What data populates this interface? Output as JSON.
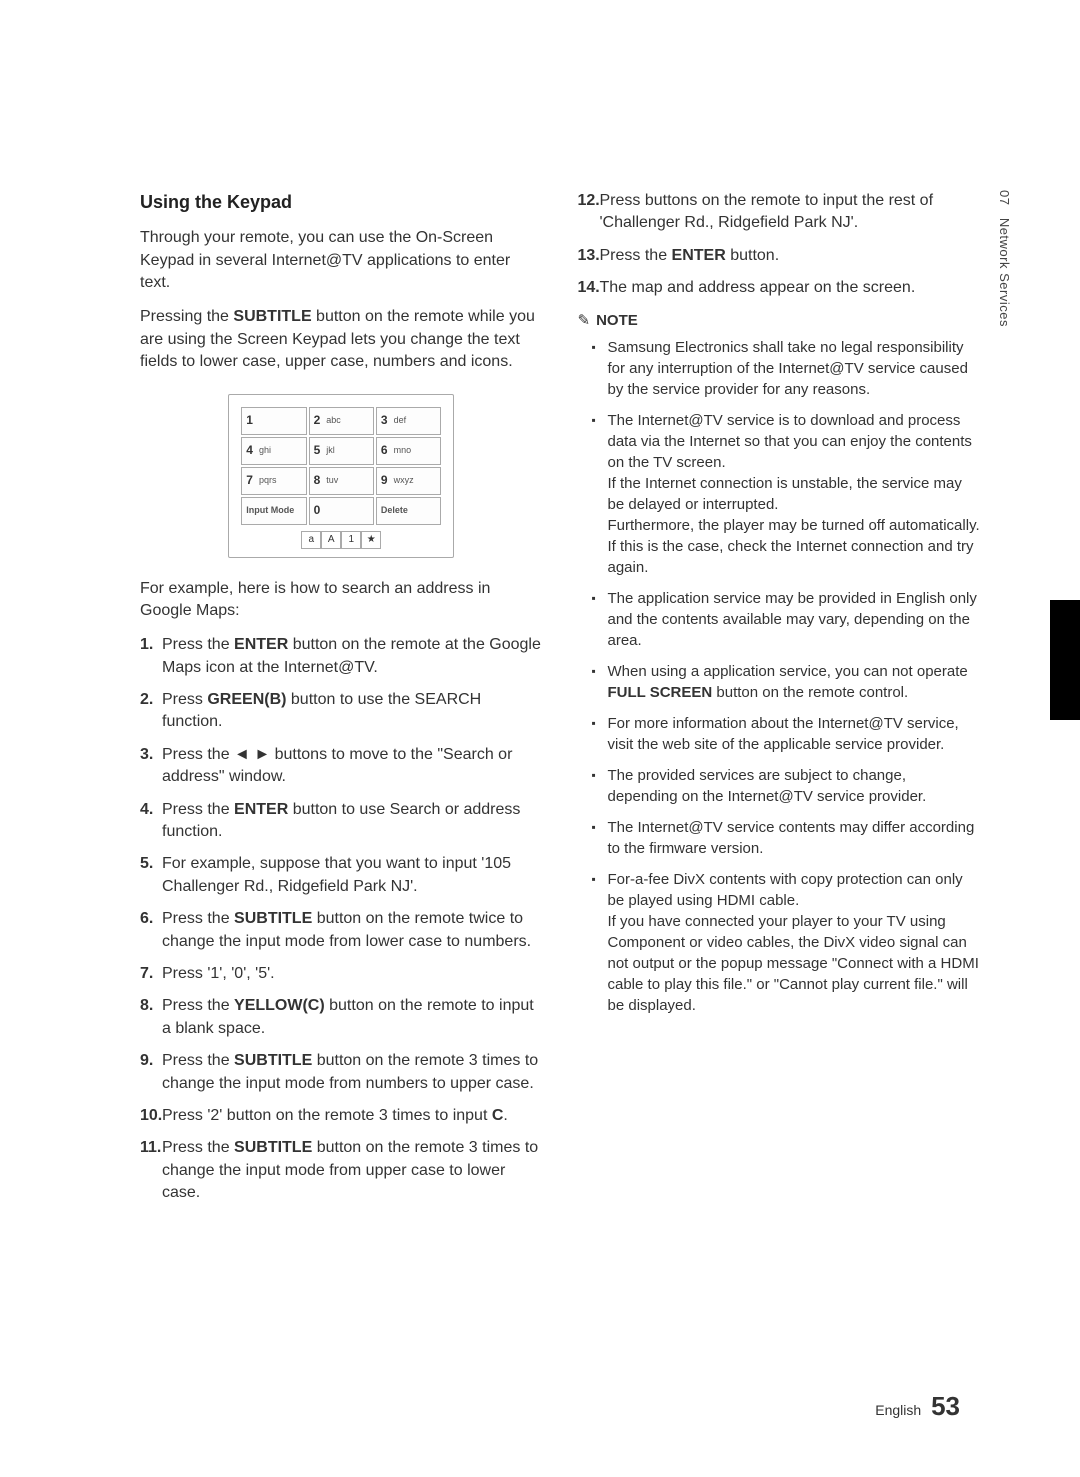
{
  "sideTab": {
    "chapter": "07",
    "title": "Network Services"
  },
  "footer": {
    "lang": "English",
    "page": "53"
  },
  "left": {
    "heading": "Using the Keypad",
    "intro1": "Through your remote, you can use the On-Screen Keypad in several Internet@TV applications to enter text.",
    "intro2_a": "Pressing the ",
    "intro2_b": "SUBTITLE",
    "intro2_c": " button on the remote while you are using the Screen Keypad lets you change the text fields to lower case, upper case, numbers and icons.",
    "keypad": {
      "keys": [
        {
          "n": "1",
          "l": ""
        },
        {
          "n": "2",
          "l": "abc"
        },
        {
          "n": "3",
          "l": "def"
        },
        {
          "n": "4",
          "l": "ghi"
        },
        {
          "n": "5",
          "l": "jkl"
        },
        {
          "n": "6",
          "l": "mno"
        },
        {
          "n": "7",
          "l": "pqrs"
        },
        {
          "n": "8",
          "l": "tuv"
        },
        {
          "n": "9",
          "l": "wxyz"
        }
      ],
      "inputMode": "Input Mode",
      "zero": "0",
      "delete": "Delete",
      "modes": [
        "a",
        "A",
        "1",
        "★"
      ]
    },
    "example_intro": "For example, here is how to search an address in Google Maps:",
    "steps": [
      {
        "pre": "Press the ",
        "b": "ENTER",
        "post": " button on the remote at the Google Maps icon at the Internet@TV."
      },
      {
        "pre": "Press ",
        "b": "GREEN(B)",
        "post": " button to use the SEARCH function."
      },
      {
        "pre": "Press the ◄ ► buttons to move to the \"Search or address\" window.",
        "b": "",
        "post": ""
      },
      {
        "pre": "Press the ",
        "b": "ENTER",
        "post": " button to use Search or address function."
      },
      {
        "pre": "For example, suppose that you want to input '105 Challenger Rd., Ridgefield Park NJ'.",
        "b": "",
        "post": ""
      },
      {
        "pre": "Press the ",
        "b": "SUBTITLE",
        "post": " button on the remote twice to change the input mode from lower case to numbers."
      },
      {
        "pre": "Press '1', '0', '5'.",
        "b": "",
        "post": ""
      },
      {
        "pre": "Press the ",
        "b": "YELLOW(C)",
        "post": " button on the remote to input a blank space."
      },
      {
        "pre": "Press the ",
        "b": "SUBTITLE",
        "post": " button on the remote 3 times to change the input mode from numbers to upper case."
      },
      {
        "pre": "Press '2' button on the remote 3 times to input ",
        "b": "C",
        "post": "."
      },
      {
        "pre": "Press the ",
        "b": "SUBTITLE",
        "post": " button on the remote 3 times to change the input mode from upper case to lower case."
      }
    ]
  },
  "right": {
    "steps": [
      {
        "n": "12",
        "pre": "Press buttons on the remote to input the rest of 'Challenger Rd., Ridgefield Park NJ'.",
        "b": "",
        "post": ""
      },
      {
        "n": "13",
        "pre": "Press the ",
        "b": "ENTER",
        "post": " button."
      },
      {
        "n": "14",
        "pre": "The map and address appear on the screen.",
        "b": "",
        "post": ""
      }
    ],
    "noteLabel": "NOTE",
    "notes": [
      "Samsung Electronics shall take no legal responsibility for any interruption of the Internet@TV service caused by the service provider for any reasons.",
      "The Internet@TV service is to download and process data via the Internet so that you can enjoy the contents on the TV screen.\nIf the Internet connection is unstable, the service may be delayed or interrupted.\nFurthermore, the player may be turned off automatically. If this is the case, check the Internet connection and try again.",
      "The application service may be provided in English only and the contents available may vary, depending on the area.",
      "When using a application service, you can not operate <b>FULL SCREEN</b> button on the remote control.",
      "For more information about the Internet@TV service, visit the web site of the applicable service provider.",
      "The provided services are subject to change, depending on the Internet@TV service provider.",
      "The Internet@TV service contents may differ according to the firmware version.",
      "For-a-fee DivX contents with copy protection can only be played using HDMI cable.\nIf you have connected your player to your TV using Component or video cables, the DivX video signal can not output or the popup message \"Connect with a HDMI cable to play this file.\" or \"Cannot play current file.\" will be displayed."
    ]
  }
}
